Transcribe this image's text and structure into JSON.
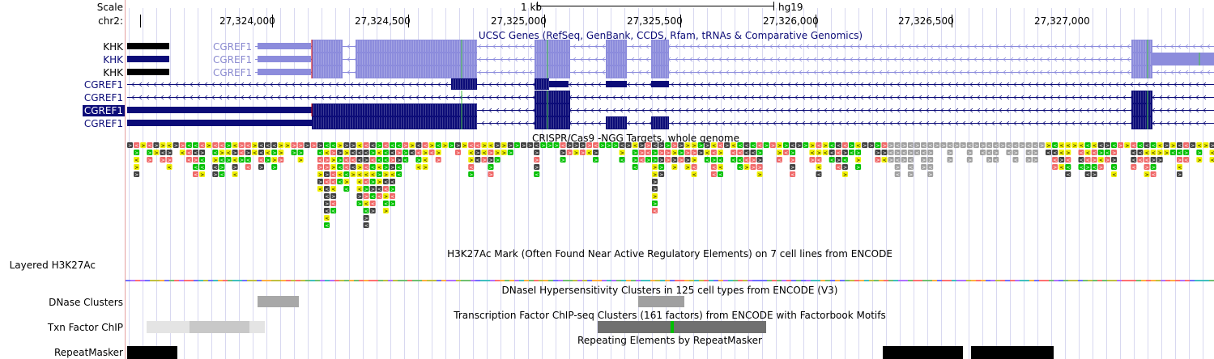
{
  "ruler": {
    "scale_label": "Scale",
    "chrom_label": "chr2:",
    "scale_bar_label": "1 kb",
    "assembly": "hg19",
    "positions": [
      "27,324,000",
      "27,324,500",
      "27,325,000",
      "27,325,500",
      "27,326,000",
      "27,326,500",
      "27,327,000"
    ]
  },
  "tracks": {
    "genes_title": "UCSC Genes (RefSeq, GenBank, CCDS, Rfam, tRNAs & Comparative Genomics)",
    "gene_rows": [
      {
        "label": "KHK",
        "inner_name": "CGREF1",
        "style": "plain"
      },
      {
        "label": "KHK",
        "inner_name": "CGREF1",
        "style": "blue"
      },
      {
        "label": "KHK",
        "inner_name": "CGREF1",
        "style": "plain"
      },
      {
        "label": "CGREF1",
        "style": "blue"
      },
      {
        "label": "CGREF1",
        "style": "blue"
      },
      {
        "label": "CGREF1",
        "style": "selected"
      },
      {
        "label": "CGREF1",
        "style": "blue"
      }
    ],
    "crispr_title": "CRISPR/Cas9 -NGG Targets, whole genome",
    "h3k27ac_title": "H3K27Ac Mark (Often Found Near Active Regulatory Elements) on 7 cell lines from ENCODE",
    "h3k27ac_label": "Layered H3K27Ac",
    "dnase_title": "DNaseI Hypersensitivity Clusters in 125 cell types from ENCODE (V3)",
    "dnase_label": "DNase Clusters",
    "txn_title": "Transcription Factor ChIP-seq Clusters (161 factors) from ENCODE with Factorbook Motifs",
    "txn_label": "Txn Factor ChIP",
    "repeat_title": "Repeating Elements by RepeatMasker",
    "repeat_label": "RepeatMasker"
  },
  "colors": {
    "gene_dark": "#0c0c78",
    "gene_light": "#8c8cdc",
    "crispr_green": "#00c000",
    "crispr_red": "#f06868",
    "crispr_yellow": "#f0f000",
    "crispr_dark": "#404040",
    "crispr_grey": "#a0a0a0",
    "gridline": "#d8d8f0"
  }
}
